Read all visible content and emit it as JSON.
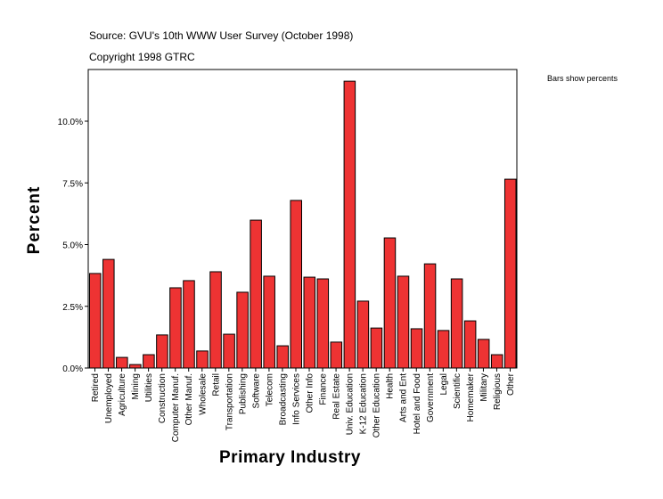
{
  "chart_data": {
    "type": "bar",
    "title": "Source: GVU's 10th WWW User Survey (October 1998)",
    "subtitle": "Copyright 1998 GTRC",
    "annotation": "Bars show percents",
    "xlabel": "Primary Industry",
    "ylabel": "Percent",
    "ylim": [
      0,
      12.1
    ],
    "yticks": [
      0,
      2.5,
      5.0,
      7.5,
      10.0
    ],
    "ytick_labels": [
      "0.0%",
      "2.5%",
      "5.0%",
      "7.5%",
      "10.0%"
    ],
    "grid": false,
    "bar_color": "#ee3333",
    "categories": [
      "Retired",
      "Unemployed",
      "Agriculture",
      "Mining",
      "Utilities",
      "Construction",
      "Computer Manuf.",
      "Other Manuf.",
      "Wholesale",
      "Retail",
      "Transportation",
      "Publishing",
      "Software",
      "Telecom",
      "Broadcasting",
      "Info Services",
      "Other Info",
      "Finance",
      "Real Estate",
      "Univ. Education",
      "K-12 Education",
      "Other Education",
      "Health",
      "Arts and Ent",
      "Hotel and Food",
      "Government",
      "Legal",
      "Scientific",
      "Homemaker",
      "Military",
      "Religious",
      "Other"
    ],
    "values": [
      3.83,
      4.4,
      0.43,
      0.14,
      0.54,
      1.34,
      3.25,
      3.54,
      0.69,
      3.9,
      1.37,
      3.07,
      5.99,
      3.72,
      0.9,
      6.79,
      3.68,
      3.61,
      1.05,
      11.62,
      2.71,
      1.62,
      5.27,
      3.72,
      1.59,
      4.22,
      1.52,
      3.61,
      1.91,
      1.16,
      0.54,
      7.65
    ]
  }
}
